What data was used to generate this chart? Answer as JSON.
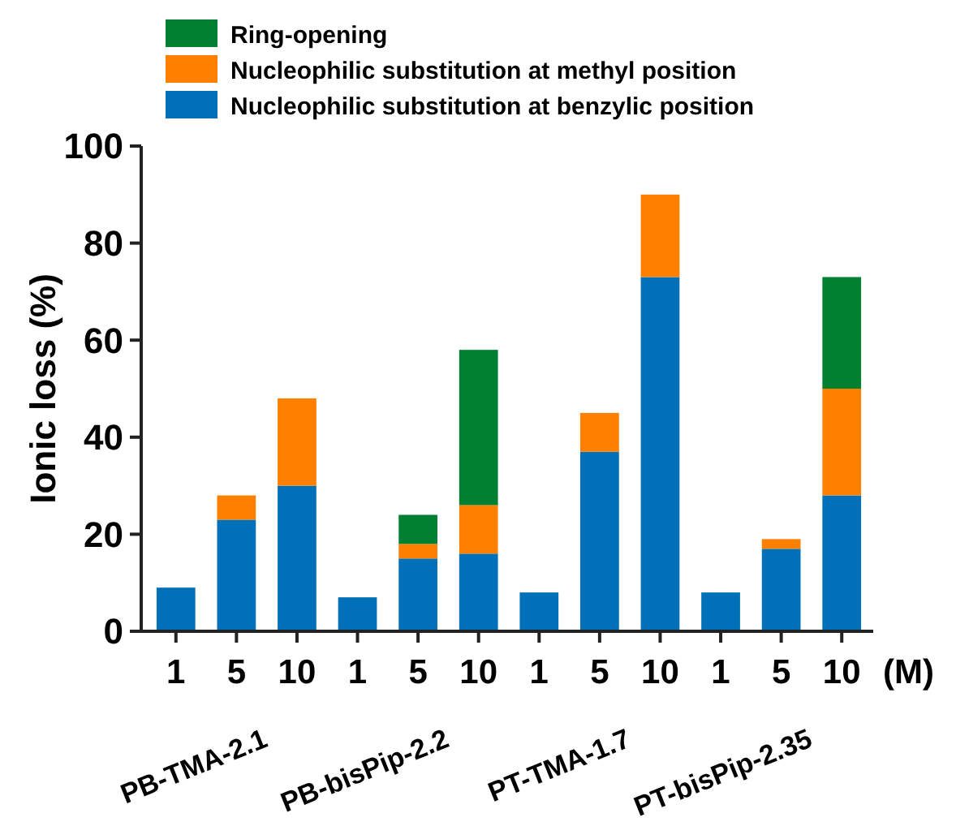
{
  "chart_data": {
    "type": "bar",
    "stacked": true,
    "ylabel": "Ionic loss (%)",
    "xlabel": "(M)",
    "categories": [
      "1",
      "5",
      "10",
      "1",
      "5",
      "10",
      "1",
      "5",
      "10",
      "1",
      "5",
      "10"
    ],
    "series": [
      {
        "name": "Nucleophilic substitution at benzylic position",
        "color": "#0070b8",
        "values": [
          9,
          23,
          30,
          7,
          15,
          16,
          8,
          37,
          73,
          8,
          17,
          28
        ]
      },
      {
        "name": "Nucleophilic substitution at methyl position",
        "color": "#ff8000",
        "values": [
          0,
          5,
          18,
          0,
          3,
          10,
          0,
          8,
          17,
          0,
          2,
          22
        ]
      },
      {
        "name": "Ring-opening",
        "color": "#008030",
        "values": [
          0,
          0,
          0,
          0,
          6,
          32,
          0,
          0,
          0,
          0,
          0,
          23
        ]
      }
    ],
    "annotations": [
      "PB-TMA-2.1",
      "PB-bisPip-2.2",
      "PT-TMA-1.7",
      "PT-bisPip-2.35"
    ],
    "ylim": [
      0,
      100
    ],
    "yticks": [
      0,
      20,
      40,
      60,
      80,
      100
    ],
    "grid": false,
    "legend": "top left"
  }
}
